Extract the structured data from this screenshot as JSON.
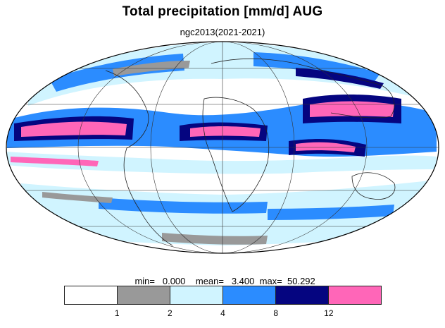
{
  "title": "Total precipitation [mm/d] AUG",
  "subtitle": "ngc2013(2021-2021)",
  "stats": {
    "min_label": "min=",
    "min_value": "0.000",
    "mean_label": "mean=",
    "mean_value": "3.400",
    "max_label": "max=",
    "max_value": "50.292"
  },
  "colorbar": {
    "colors": [
      "#ffffff",
      "#999999",
      "#d0f4ff",
      "#2b8cff",
      "#050580",
      "#ff66b8"
    ],
    "tick_labels": [
      "1",
      "2",
      "4",
      "8",
      "12"
    ]
  }
}
